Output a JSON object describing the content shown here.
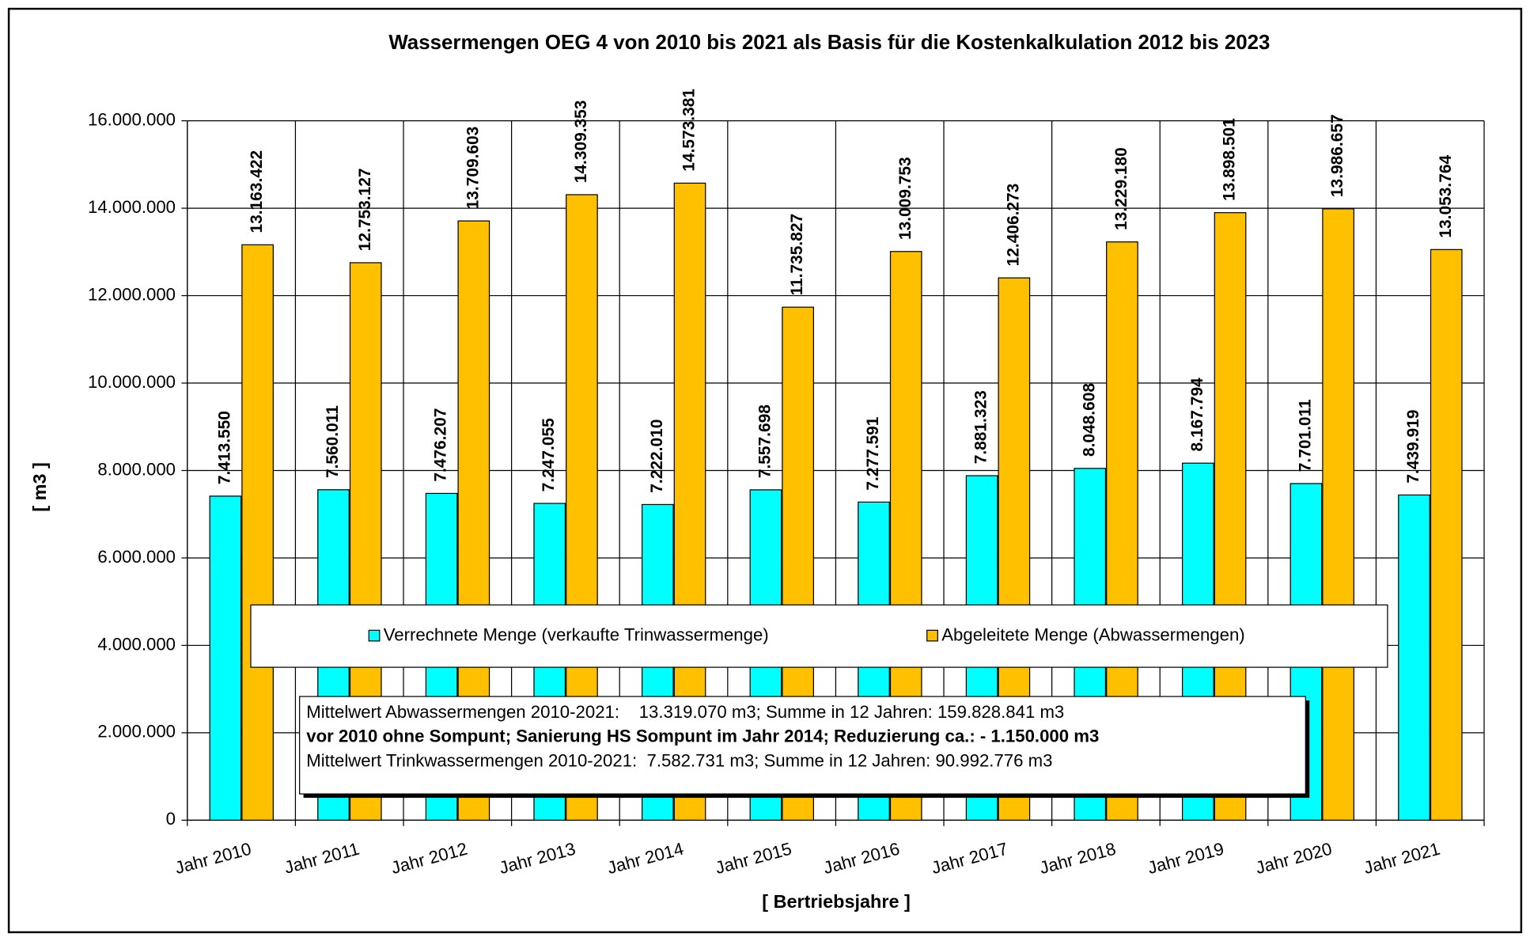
{
  "chart_data": {
    "type": "bar",
    "title": "Wassermengen OEG 4 von 2010 bis 2021 als Basis für die Kostenkalkulation 2012 bis 2023",
    "x_label": "[ Bertriebsjahre ]",
    "y_label": "[ m3 ]",
    "categories": [
      "Jahr 2010",
      "Jahr 2011",
      "Jahr 2012",
      "Jahr 2013",
      "Jahr 2014",
      "Jahr 2015",
      "Jahr 2016",
      "Jahr 2017",
      "Jahr 2018",
      "Jahr 2019",
      "Jahr 2020",
      "Jahr 2021"
    ],
    "series": [
      {
        "name": "Verrechnete Menge (verkaufte Trinwassermenge)",
        "color": "#00ffff",
        "values": [
          7413550,
          7560011,
          7476207,
          7247055,
          7222010,
          7557698,
          7277591,
          7881323,
          8048608,
          8167794,
          7701011,
          7439919
        ],
        "value_labels": [
          "7.413.550",
          "7.560.011",
          "7.476.207",
          "7.247.055",
          "7.222.010",
          "7.557.698",
          "7.277.591",
          "7.881.323",
          "8.048.608",
          "8.167.794",
          "7.701.011",
          "7.439.919"
        ]
      },
      {
        "name": "Abgeleitete Menge (Abwassermengen)",
        "color": "#ffc000",
        "values": [
          13163422,
          12753127,
          13709603,
          14309353,
          14573381,
          11735827,
          13009753,
          12406273,
          13229180,
          13898501,
          13986657,
          13053764
        ],
        "value_labels": [
          "13.163.422",
          "12.753.127",
          "13.709.603",
          "14.309.353",
          "14.573.381",
          "11.735.827",
          "13.009.753",
          "12.406.273",
          "13.229.180",
          "13.898.501",
          "13.986.657",
          "13.053.764"
        ]
      }
    ],
    "ylim": [
      0,
      16000000
    ],
    "yticks": [
      0,
      {
        "value": 2000000,
        "label": "2.000.000"
      },
      {
        "value": 4000000,
        "label": "4.000.000"
      },
      {
        "value": 6000000,
        "label": "6.000.000"
      },
      {
        "value": 8000000,
        "label": "8.000.000"
      },
      {
        "value": 10000000,
        "label": "10.000.000"
      },
      {
        "value": 12000000,
        "label": "12.000.000"
      },
      {
        "value": 14000000,
        "label": "14.000.000"
      },
      {
        "value": 16000000,
        "label": "16.000.000"
      }
    ],
    "grid": true,
    "annotations": [
      "Mittelwert Abwassermengen 2010-2021:    13.319.070 m3; Summe in 12 Jahren: 159.828.841 m3",
      "vor 2010 ohne Sompunt; Sanierung HS Sompunt im Jahr 2014; Reduzierung ca.: - 1.150.000 m3",
      "Mittelwert Trinkwassermengen 2010-2021:  7.582.731 m3; Summe in 12 Jahren: 90.992.776 m3"
    ]
  }
}
